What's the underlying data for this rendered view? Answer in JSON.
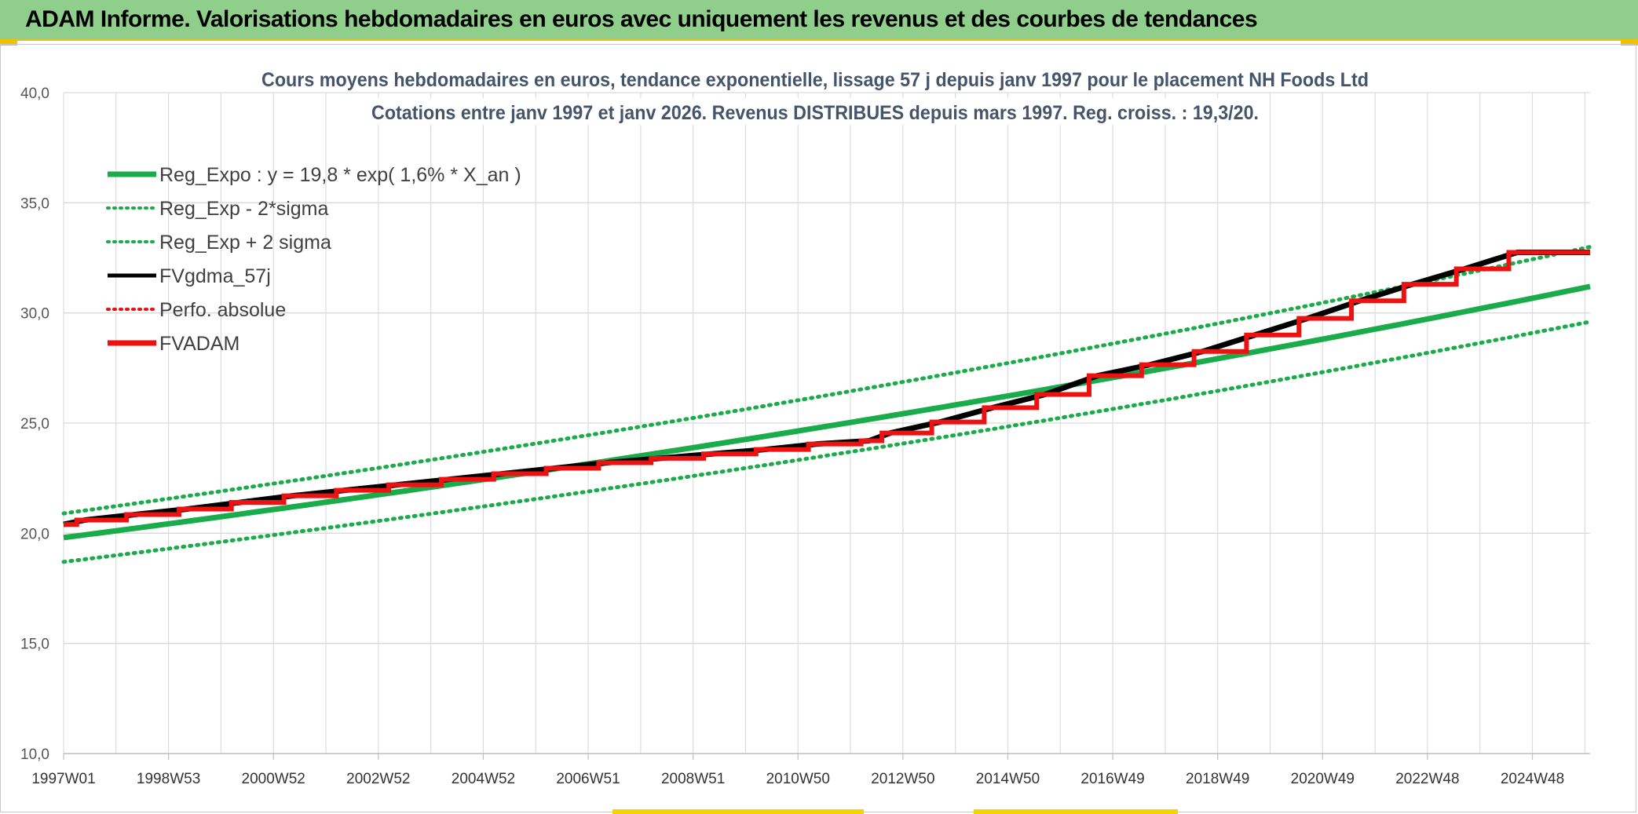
{
  "banner": {
    "title": "ADAM Informe. Valorisations hebdomadaires en euros avec uniquement les revenus et des courbes de tendances"
  },
  "chart_data": {
    "type": "line",
    "title_line1": "Cours moyens hebdomadaires en euros, tendance exponentielle, lissage 57 j depuis janv 1997 pour le placement NH Foods Ltd",
    "title_line2": "Cotations entre janv 1997 et janv 2026. Revenus DISTRIBUES depuis mars 1997. Reg. croiss. : 19,3/20.",
    "ylim": [
      10,
      40
    ],
    "y_ticks": [
      "10,0",
      "15,0",
      "20,0",
      "25,0",
      "30,0",
      "35,0",
      "40,0"
    ],
    "x_range_years": [
      1997.0,
      2026.1
    ],
    "x_tick_labels": [
      "1997W01",
      "1998W53",
      "2000W52",
      "2002W52",
      "2004W52",
      "2006W51",
      "2008W51",
      "2010W50",
      "2012W50",
      "2014W50",
      "2016W49",
      "2018W49",
      "2020W49",
      "2022W48",
      "2024W48"
    ],
    "legend": [
      {
        "label": "Reg_Expo : y = 19,8 * exp( 1,6% *  X_an )",
        "color": "#1aab4a",
        "style": "solid-thick"
      },
      {
        "label": "Reg_Exp - 2*sigma",
        "color": "#1aab4a",
        "style": "dotted"
      },
      {
        "label": "Reg_Exp + 2 sigma",
        "color": "#1aab4a",
        "style": "dotted"
      },
      {
        "label": "FVgdma_57j",
        "color": "#000000",
        "style": "solid"
      },
      {
        "label": "Perfo. absolue",
        "color": "#ee1111",
        "style": "dotted"
      },
      {
        "label": "FVADAM",
        "color": "#ee1111",
        "style": "solid-thick"
      }
    ],
    "series": [
      {
        "name": "Reg_Expo",
        "color": "#1aab4a",
        "start": 19.8,
        "end": 31.2
      },
      {
        "name": "Reg_Exp - 2*sigma",
        "color": "#1aab4a",
        "start": 18.7,
        "end": 29.6
      },
      {
        "name": "Reg_Exp + 2 sigma",
        "color": "#1aab4a",
        "start": 20.9,
        "end": 33.0
      },
      {
        "name": "FVADAM",
        "color": "#ee1111",
        "steps": [
          {
            "year": 1997.0,
            "value": 20.4
          },
          {
            "year": 1997.25,
            "value": 20.6
          },
          {
            "year": 1998.2,
            "value": 20.85
          },
          {
            "year": 1999.2,
            "value": 21.1
          },
          {
            "year": 2000.2,
            "value": 21.4
          },
          {
            "year": 2001.2,
            "value": 21.7
          },
          {
            "year": 2002.2,
            "value": 21.95
          },
          {
            "year": 2003.2,
            "value": 22.2
          },
          {
            "year": 2004.2,
            "value": 22.45
          },
          {
            "year": 2005.2,
            "value": 22.7
          },
          {
            "year": 2006.2,
            "value": 22.95
          },
          {
            "year": 2007.2,
            "value": 23.2
          },
          {
            "year": 2008.2,
            "value": 23.4
          },
          {
            "year": 2009.2,
            "value": 23.6
          },
          {
            "year": 2010.2,
            "value": 23.8
          },
          {
            "year": 2011.2,
            "value": 24.05
          },
          {
            "year": 2012.2,
            "value": 24.2
          },
          {
            "year": 2012.6,
            "value": 24.55
          },
          {
            "year": 2013.55,
            "value": 25.05
          },
          {
            "year": 2014.55,
            "value": 25.7
          },
          {
            "year": 2015.55,
            "value": 26.3
          },
          {
            "year": 2016.55,
            "value": 27.15
          },
          {
            "year": 2017.55,
            "value": 27.65
          },
          {
            "year": 2018.55,
            "value": 28.25
          },
          {
            "year": 2019.55,
            "value": 29.0
          },
          {
            "year": 2020.55,
            "value": 29.75
          },
          {
            "year": 2021.55,
            "value": 30.55
          },
          {
            "year": 2022.55,
            "value": 31.3
          },
          {
            "year": 2023.55,
            "value": 32.0
          },
          {
            "year": 2024.55,
            "value": 32.75
          }
        ],
        "end_year": 2026.1
      }
    ]
  }
}
